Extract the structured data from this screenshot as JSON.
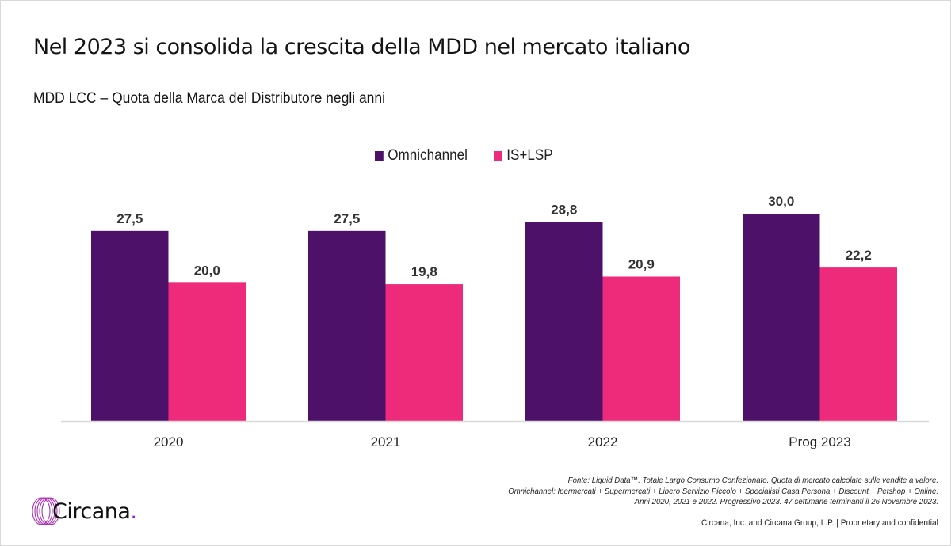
{
  "slide": {
    "title": "Nel 2023 si consolida la crescita della MDD nel mercato italiano",
    "subtitle": "MDD LCC – Quota della Marca del Distributore negli anni"
  },
  "legend": [
    {
      "label": "Omnichannel",
      "color": "#4e1169"
    },
    {
      "label": "IS+LSP",
      "color": "#ee2b7b"
    }
  ],
  "chart_data": {
    "type": "bar",
    "title": "MDD LCC – Quota della Marca del Distributore negli anni",
    "xlabel": "",
    "ylabel": "",
    "categories": [
      "2020",
      "2021",
      "2022",
      "Prog 2023"
    ],
    "series": [
      {
        "name": "Omnichannel",
        "color": "#4e1169",
        "values": [
          27.5,
          27.5,
          28.8,
          30.0
        ],
        "labels": [
          "27,5",
          "27,5",
          "28,8",
          "30,0"
        ]
      },
      {
        "name": "IS+LSP",
        "color": "#ee2b7b",
        "values": [
          20.0,
          19.8,
          20.9,
          22.2
        ],
        "labels": [
          "20,0",
          "19,8",
          "20,9",
          "22,2"
        ]
      }
    ],
    "ylim": [
      0,
      30
    ],
    "grid": false,
    "legend_position": "top-center",
    "axis_color": "#d9d9d9"
  },
  "footnote": {
    "lines": [
      "Fonte: Liquid Data™. Totale Largo Consumo Confezionato. Quota di mercato calcolate sulle vendite a valore.",
      "Omnichannel: Ipermercati + Supermercati + Libero Servizio Piccolo + Specialisti Casa Persona + Discount + Petshop + Online.",
      "Anni 2020, 2021 e 2022. Progressivo 2023: 47 settimane terminanti il 26 Novembre 2023."
    ]
  },
  "copyright": "Circana, Inc. and Circana Group, L.P. |  Proprietary and confidential",
  "logo": {
    "text": "Circana",
    "dot": ".",
    "icon": "circana-rings-icon"
  }
}
